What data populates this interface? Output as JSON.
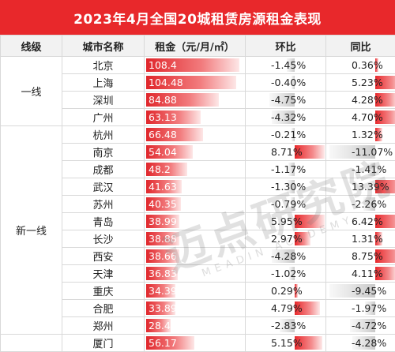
{
  "title": "2023年4月全国20城租赁房源租金表现",
  "headers": [
    "线级",
    "城市名称",
    "租金（元/月/㎡）",
    "环比",
    "同比"
  ],
  "tiers": [
    {
      "label": "一线",
      "rows": [
        {
          "city": "北京",
          "rent": "108.4",
          "rent_value": 108.4,
          "mom": "-1.45%",
          "mom_value": -1.45,
          "yoy": "0.36%",
          "yoy_value": 0.36
        },
        {
          "city": "上海",
          "rent": "104.48",
          "rent_value": 104.48,
          "mom": "-0.40%",
          "mom_value": -0.4,
          "yoy": "5.23%",
          "yoy_value": 5.23
        },
        {
          "city": "深圳",
          "rent": "84.88",
          "rent_value": 84.88,
          "mom": "-4.75%",
          "mom_value": -4.75,
          "yoy": "4.28%",
          "yoy_value": 4.28
        },
        {
          "city": "广州",
          "rent": "63.13",
          "rent_value": 63.13,
          "mom": "-4.32%",
          "mom_value": -4.32,
          "yoy": "4.70%",
          "yoy_value": 4.7
        }
      ]
    },
    {
      "label": "新一线",
      "rows": [
        {
          "city": "杭州",
          "rent": "66.48",
          "rent_value": 66.48,
          "mom": "-0.21%",
          "mom_value": -0.21,
          "yoy": "1.32%",
          "yoy_value": 1.32
        },
        {
          "city": "南京",
          "rent": "54.04",
          "rent_value": 54.04,
          "mom": "8.71%",
          "mom_value": 8.71,
          "yoy": "-11.07%",
          "yoy_value": -11.07
        },
        {
          "city": "成都",
          "rent": "48.2",
          "rent_value": 48.2,
          "mom": "-1.17%",
          "mom_value": -1.17,
          "yoy": "-1.41%",
          "yoy_value": -1.41
        },
        {
          "city": "武汉",
          "rent": "41.63",
          "rent_value": 41.63,
          "mom": "-1.30%",
          "mom_value": -1.3,
          "yoy": "13.39%",
          "yoy_value": 13.39
        },
        {
          "city": "苏州",
          "rent": "40.35",
          "rent_value": 40.35,
          "mom": "-0.79%",
          "mom_value": -0.79,
          "yoy": "-2.26%",
          "yoy_value": -2.26
        },
        {
          "city": "青岛",
          "rent": "38.99",
          "rent_value": 38.99,
          "mom": "5.95%",
          "mom_value": 5.95,
          "yoy": "6.42%",
          "yoy_value": 6.42
        },
        {
          "city": "长沙",
          "rent": "38.88",
          "rent_value": 38.88,
          "mom": "2.97%",
          "mom_value": 2.97,
          "yoy": "1.31%",
          "yoy_value": 1.31
        },
        {
          "city": "西安",
          "rent": "38.66",
          "rent_value": 38.66,
          "mom": "-4.28%",
          "mom_value": -4.28,
          "yoy": "8.75%",
          "yoy_value": 8.75
        },
        {
          "city": "天津",
          "rent": "36.83",
          "rent_value": 36.83,
          "mom": "-1.02%",
          "mom_value": -1.02,
          "yoy": "4.11%",
          "yoy_value": 4.11
        },
        {
          "city": "重庆",
          "rent": "34.39",
          "rent_value": 34.39,
          "mom": "0.29%",
          "mom_value": 0.29,
          "yoy": "-9.45%",
          "yoy_value": -9.45
        },
        {
          "city": "合肥",
          "rent": "33.89",
          "rent_value": 33.89,
          "mom": "4.79%",
          "mom_value": 4.79,
          "yoy": "-1.97%",
          "yoy_value": -1.97
        },
        {
          "city": "郑州",
          "rent": "28.46",
          "rent_value": 28.46,
          "mom": "-2.83%",
          "mom_value": -2.83,
          "yoy": "-4.72%",
          "yoy_value": -4.72
        }
      ]
    },
    {
      "label": "",
      "rows": [
        {
          "city": "厦门",
          "rent": "56.17",
          "rent_value": 56.17,
          "mom": "5.15%",
          "mom_value": 5.15,
          "yoy": "-4.28%",
          "yoy_value": -4.28
        }
      ]
    }
  ],
  "watermark": "迈点研究院",
  "watermark_sub": "MEADIN ACADEMY",
  "colors": {
    "title_bg": "#e8282b",
    "positive": "#e8282b",
    "negative": "#c9c9c9",
    "header_bg": "#f2f2f2"
  }
}
